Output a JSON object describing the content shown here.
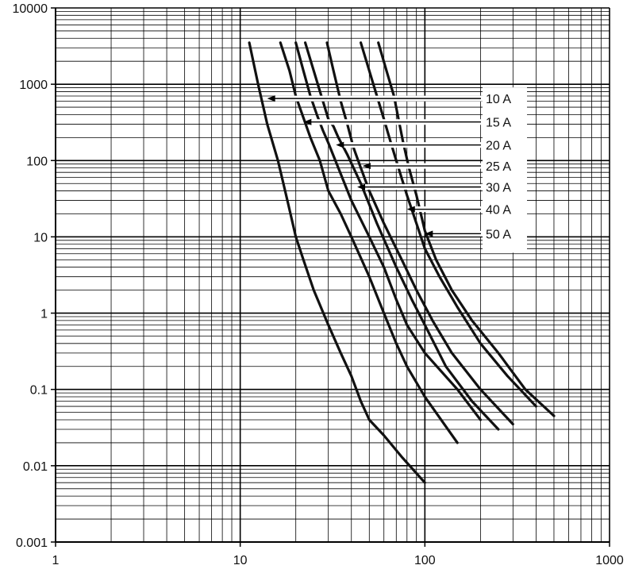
{
  "chart_data": {
    "type": "line",
    "title": "",
    "xlabel": "",
    "ylabel": "",
    "x_scale": "log",
    "y_scale": "log",
    "xlim": [
      1,
      1000
    ],
    "ylim": [
      0.001,
      10000
    ],
    "grid": true,
    "x_ticks": [
      {
        "value": 1,
        "label": "1"
      },
      {
        "value": 10,
        "label": "10"
      },
      {
        "value": 100,
        "label": "100"
      },
      {
        "value": 1000,
        "label": "1000"
      }
    ],
    "y_ticks": [
      {
        "value": 0.001,
        "label": "0.001"
      },
      {
        "value": 0.01,
        "label": "0.01"
      },
      {
        "value": 0.1,
        "label": "0.1"
      },
      {
        "value": 1,
        "label": "1"
      },
      {
        "value": 10,
        "label": "10"
      },
      {
        "value": 100,
        "label": "100"
      },
      {
        "value": 1000,
        "label": "1000"
      },
      {
        "value": 10000,
        "label": "10000"
      }
    ],
    "legend_placement": "right, labels with arrows pointing to curves",
    "series": [
      {
        "name": "10 A",
        "label_y": 650,
        "arrow_to_x": 14.0,
        "points": [
          [
            11.2,
            3500
          ],
          [
            12.5,
            1000
          ],
          [
            14,
            300
          ],
          [
            16,
            100
          ],
          [
            18,
            30
          ],
          [
            20,
            10
          ],
          [
            22,
            5
          ],
          [
            25,
            2
          ],
          [
            30,
            0.7
          ],
          [
            35,
            0.3
          ],
          [
            40,
            0.15
          ],
          [
            45,
            0.07
          ],
          [
            50,
            0.04
          ],
          [
            60,
            0.025
          ],
          [
            75,
            0.013
          ],
          [
            100,
            0.006
          ]
        ]
      },
      {
        "name": "15 A",
        "label_y": 320,
        "arrow_to_x": 22.0,
        "points": [
          [
            16.5,
            3500
          ],
          [
            18.5,
            1500
          ],
          [
            20,
            700
          ],
          [
            21,
            500
          ],
          [
            24,
            200
          ],
          [
            27,
            100
          ],
          [
            30,
            40
          ],
          [
            35,
            20
          ],
          [
            40,
            10
          ],
          [
            50,
            3
          ],
          [
            60,
            1
          ],
          [
            70,
            0.4
          ],
          [
            80,
            0.2
          ],
          [
            100,
            0.08
          ],
          [
            150,
            0.02
          ]
        ]
      },
      {
        "name": "20 A",
        "label_y": 160,
        "arrow_to_x": 33.0,
        "points": [
          [
            20,
            3500
          ],
          [
            22,
            1500
          ],
          [
            24,
            700
          ],
          [
            26,
            400
          ],
          [
            28,
            250
          ],
          [
            30,
            170
          ],
          [
            34,
            80
          ],
          [
            40,
            30
          ],
          [
            50,
            10
          ],
          [
            60,
            4
          ],
          [
            70,
            1.5
          ],
          [
            80,
            0.7
          ],
          [
            100,
            0.3
          ],
          [
            150,
            0.1
          ],
          [
            200,
            0.04
          ]
        ]
      },
      {
        "name": "25 A",
        "label_y": 85,
        "arrow_to_x": 46.0,
        "points": [
          [
            22.5,
            3500
          ],
          [
            25,
            1500
          ],
          [
            27.5,
            700
          ],
          [
            30,
            350
          ],
          [
            32,
            280
          ],
          [
            34,
            200
          ],
          [
            38,
            120
          ],
          [
            45,
            50
          ],
          [
            55,
            15
          ],
          [
            70,
            4
          ],
          [
            85,
            1.5
          ],
          [
            100,
            0.7
          ],
          [
            130,
            0.2
          ],
          [
            180,
            0.07
          ],
          [
            250,
            0.03
          ]
        ]
      },
      {
        "name": "30 A",
        "label_y": 45,
        "arrow_to_x": 43.0,
        "points": [
          [
            29.5,
            3500
          ],
          [
            32,
            1500
          ],
          [
            35,
            600
          ],
          [
            38,
            300
          ],
          [
            41,
            150
          ],
          [
            45,
            80
          ],
          [
            50,
            40
          ],
          [
            60,
            15
          ],
          [
            75,
            5
          ],
          [
            90,
            2
          ],
          [
            110,
            0.8
          ],
          [
            140,
            0.3
          ],
          [
            200,
            0.1
          ],
          [
            300,
            0.035
          ]
        ]
      },
      {
        "name": "40 A",
        "label_y": 23,
        "arrow_to_x": 80.0,
        "points": [
          [
            45,
            3500
          ],
          [
            50,
            1500
          ],
          [
            55,
            700
          ],
          [
            60,
            350
          ],
          [
            65,
            180
          ],
          [
            72,
            80
          ],
          [
            80,
            35
          ],
          [
            90,
            15
          ],
          [
            100,
            7
          ],
          [
            120,
            3
          ],
          [
            150,
            1.2
          ],
          [
            200,
            0.4
          ],
          [
            280,
            0.15
          ],
          [
            400,
            0.06
          ]
        ]
      },
      {
        "name": "50 A",
        "label_y": 11,
        "arrow_to_x": 100.0,
        "points": [
          [
            56,
            3500
          ],
          [
            62,
            1500
          ],
          [
            68,
            700
          ],
          [
            72,
            350
          ],
          [
            76,
            180
          ],
          [
            82,
            80
          ],
          [
            90,
            35
          ],
          [
            100,
            12
          ],
          [
            115,
            5
          ],
          [
            140,
            2
          ],
          [
            180,
            0.8
          ],
          [
            250,
            0.3
          ],
          [
            350,
            0.1
          ],
          [
            500,
            0.045
          ]
        ]
      }
    ]
  }
}
